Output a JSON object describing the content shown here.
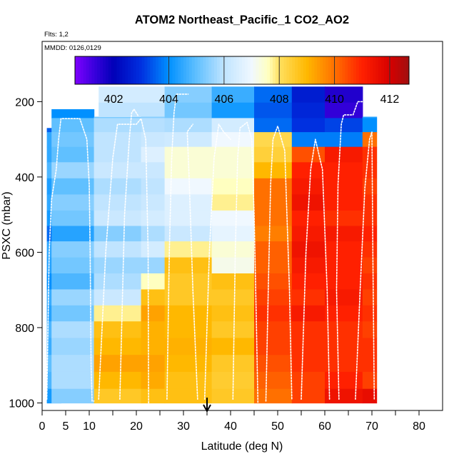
{
  "chart_data": {
    "type": "heatmap",
    "title": "ATOM2 Northeast_Pacific_1 CO2_AO2",
    "flights_label": "Flts: 1,2",
    "mmdd_label": "MMDD: 0126,0129",
    "xlabel": "Latitude (deg N)",
    "ylabel": "PSXC (mbar)",
    "xlim": [
      0,
      85
    ],
    "ylim": [
      1020,
      40
    ],
    "x_ticks": [
      0,
      5,
      10,
      20,
      30,
      40,
      50,
      60,
      70,
      80
    ],
    "x_minor_ticks": [
      15,
      25,
      35,
      45,
      55,
      65,
      75
    ],
    "y_ticks": [
      200,
      400,
      600,
      800,
      1000
    ],
    "colorbar": {
      "min": 400.6,
      "max": 412.7,
      "tick_values": [
        402,
        404,
        406,
        408,
        410,
        412
      ],
      "separators": [
        404,
        406,
        408,
        410,
        412
      ],
      "stops": [
        {
          "v": 400.6,
          "c": "#7f00ff"
        },
        {
          "v": 401.3,
          "c": "#3a00dd"
        },
        {
          "v": 402.0,
          "c": "#0000b8"
        },
        {
          "v": 403.0,
          "c": "#0030e0"
        },
        {
          "v": 404.0,
          "c": "#0090ff"
        },
        {
          "v": 405.0,
          "c": "#60c0ff"
        },
        {
          "v": 406.0,
          "c": "#c0e4ff"
        },
        {
          "v": 407.0,
          "c": "#f0f8ff"
        },
        {
          "v": 407.6,
          "c": "#ffffc0"
        },
        {
          "v": 408.0,
          "c": "#ffe060"
        },
        {
          "v": 409.0,
          "c": "#ffb800"
        },
        {
          "v": 410.0,
          "c": "#ff7000"
        },
        {
          "v": 411.0,
          "c": "#ff2000"
        },
        {
          "v": 412.0,
          "c": "#d80000"
        },
        {
          "v": 412.7,
          "c": "#a01010"
        }
      ]
    },
    "pressure_levels": [
      180,
      225,
      262,
      300,
      340,
      382,
      425,
      468,
      510,
      550,
      592,
      635,
      677,
      720,
      762,
      805,
      850,
      895,
      940,
      985
    ],
    "blocks": [
      {
        "x0": 1,
        "x1": 4,
        "p0": 270,
        "p1": 1000,
        "vals": [
          null,
          null,
          403.5,
          404.5,
          404.5,
          404.8,
          404.3,
          404.5,
          404.2,
          403.6,
          404.5,
          404.4,
          404.0,
          404.6,
          404.4,
          404.8,
          404.6,
          405.0,
          404.8,
          404.2
        ]
      },
      {
        "x0": 2,
        "x1": 11,
        "p0": 220,
        "p1": 1000,
        "vals": [
          null,
          404.0,
          405.0,
          405.2,
          405.0,
          405.6,
          405.0,
          405.4,
          405.2,
          404.4,
          405.4,
          405.2,
          404.8,
          405.6,
          405.2,
          405.8,
          405.6,
          405.8,
          405.8,
          405.4
        ]
      },
      {
        "x0": 11,
        "x1": 21,
        "p0": 240,
        "p1": 1000,
        "vals": [
          null,
          405.2,
          405.8,
          406.0,
          406.0,
          406.2,
          405.8,
          406.0,
          406.2,
          405.4,
          406.0,
          405.6,
          405.8,
          406.2,
          407.8,
          408.8,
          409.0,
          409.3,
          409.0,
          408.6
        ]
      },
      {
        "x0": 12,
        "x1": 26,
        "p0": 160,
        "p1": 240,
        "vals": [
          406.4,
          406.0,
          null,
          null,
          null,
          null,
          null,
          null,
          null,
          null,
          null,
          null,
          null,
          null,
          null,
          null,
          null,
          null,
          null,
          null
        ]
      },
      {
        "x0": 21,
        "x1": 26,
        "p0": 240,
        "p1": 1000,
        "vals": [
          null,
          405.4,
          405.9,
          406.2,
          406.6,
          406.2,
          406.0,
          406.2,
          406.4,
          405.8,
          406.4,
          405.6,
          407.6,
          408.8,
          409.3,
          409.1,
          409.1,
          409.3,
          409.2,
          408.8
        ]
      },
      {
        "x0": 26,
        "x1": 36,
        "p0": 160,
        "p1": 1000,
        "vals": [
          405.4,
          405.2,
          405.8,
          406.3,
          407.4,
          407.4,
          407.0,
          406.6,
          406.6,
          406.2,
          407.8,
          408.8,
          408.6,
          408.6,
          409.0,
          409.0,
          409.1,
          409.0,
          408.8,
          408.8
        ]
      },
      {
        "x0": 36,
        "x1": 45,
        "p0": 160,
        "p1": 1000,
        "vals": [
          404.6,
          404.2,
          406.4,
          407.0,
          407.4,
          407.4,
          407.6,
          407.8,
          407.0,
          406.8,
          407.4,
          407.2,
          408.8,
          408.6,
          408.8,
          408.6,
          409.0,
          408.6,
          408.5,
          408.6
        ]
      },
      {
        "x0": 45,
        "x1": 53,
        "p0": 160,
        "p1": 1000,
        "vals": [
          403.6,
          403.4,
          403.6,
          408.2,
          408.4,
          409.0,
          410.0,
          410.0,
          410.0,
          409.8,
          410.2,
          410.2,
          410.4,
          410.6,
          410.8,
          410.6,
          410.6,
          410.4,
          410.2,
          410.0
        ]
      },
      {
        "x0": 53,
        "x1": 60,
        "p0": 160,
        "p1": 1000,
        "vals": [
          402.6,
          402.8,
          403.0,
          403.8,
          410.4,
          411.0,
          411.2,
          411.4,
          411.0,
          411.2,
          411.4,
          411.2,
          411.0,
          410.8,
          411.2,
          410.8,
          410.8,
          410.8,
          410.6,
          410.6
        ]
      },
      {
        "x0": 60,
        "x1": 68,
        "p0": 160,
        "p1": 1000,
        "vals": [
          401.6,
          401.4,
          403.2,
          403.8,
          411.2,
          411.0,
          411.0,
          411.0,
          410.8,
          411.2,
          411.0,
          411.0,
          411.0,
          411.2,
          411.0,
          410.8,
          410.8,
          410.8,
          411.0,
          411.4
        ]
      },
      {
        "x0": 68,
        "x1": 71,
        "p0": 240,
        "p1": 1000,
        "vals": [
          null,
          404.4,
          404.0,
          410.0,
          410.8,
          410.8,
          410.6,
          410.8,
          410.8,
          411.0,
          410.8,
          410.6,
          410.8,
          410.6,
          410.8,
          410.6,
          410.8,
          410.8,
          410.6,
          411.6
        ]
      }
    ],
    "flight_tracks": [
      [
        [
          1,
          990
        ],
        [
          1.5,
          600
        ],
        [
          2,
          460
        ],
        [
          3,
          380
        ],
        [
          3.5,
          300
        ],
        [
          4,
          245
        ],
        [
          8,
          245
        ],
        [
          9.5,
          300
        ],
        [
          10,
          420
        ],
        [
          10.2,
          600
        ],
        [
          10.4,
          900
        ],
        [
          10.6,
          995
        ],
        [
          11,
          995
        ]
      ],
      [
        [
          12,
          990
        ],
        [
          13.5,
          600
        ],
        [
          15,
          350
        ],
        [
          16,
          260
        ],
        [
          20,
          260
        ],
        [
          21,
          245
        ],
        [
          22,
          300
        ],
        [
          22.5,
          600
        ],
        [
          22.6,
          1000
        ]
      ],
      [
        [
          16.5,
          990
        ],
        [
          17.5,
          500
        ],
        [
          18.5,
          300
        ],
        [
          19,
          230
        ],
        [
          19.5,
          220
        ],
        [
          20.5,
          240
        ]
      ],
      [
        [
          26.5,
          990
        ],
        [
          27,
          600
        ],
        [
          27.5,
          350
        ],
        [
          28,
          230
        ],
        [
          28.5,
          180
        ],
        [
          31,
          180
        ]
      ],
      [
        [
          33,
          990
        ],
        [
          32,
          700
        ],
        [
          31.2,
          400
        ],
        [
          30.8,
          280
        ],
        [
          32,
          260
        ]
      ],
      [
        [
          34.5,
          990
        ],
        [
          35.5,
          600
        ],
        [
          36.5,
          350
        ],
        [
          37.5,
          260
        ],
        [
          38.5,
          280
        ],
        [
          40,
          300
        ]
      ],
      [
        [
          40.5,
          990
        ],
        [
          41,
          600
        ],
        [
          41.5,
          350
        ],
        [
          42,
          270
        ],
        [
          43.5,
          255
        ],
        [
          44.5,
          300
        ],
        [
          45,
          500
        ],
        [
          45.5,
          800
        ],
        [
          45.8,
          1000
        ]
      ],
      [
        [
          47.5,
          995
        ],
        [
          48,
          700
        ],
        [
          48.5,
          420
        ],
        [
          49,
          300
        ],
        [
          50,
          265
        ],
        [
          51.5,
          330
        ],
        [
          52.5,
          700
        ],
        [
          53,
          990
        ]
      ],
      [
        [
          55,
          990
        ],
        [
          56,
          600
        ],
        [
          57,
          380
        ],
        [
          58,
          300
        ],
        [
          59.5,
          380
        ],
        [
          60.5,
          700
        ],
        [
          61,
          990
        ]
      ],
      [
        [
          63,
          990
        ],
        [
          62.5,
          700
        ],
        [
          62.8,
          420
        ],
        [
          63.5,
          260
        ],
        [
          64,
          235
        ],
        [
          66,
          235
        ],
        [
          67,
          200
        ],
        [
          68,
          200
        ]
      ],
      [
        [
          66.5,
          990
        ],
        [
          67.5,
          700
        ],
        [
          68.5,
          430
        ],
        [
          69.5,
          300
        ],
        [
          70,
          280
        ],
        [
          70.2,
          600
        ],
        [
          70.5,
          990
        ]
      ]
    ],
    "marker": {
      "x": 35,
      "label": "arrow"
    }
  }
}
